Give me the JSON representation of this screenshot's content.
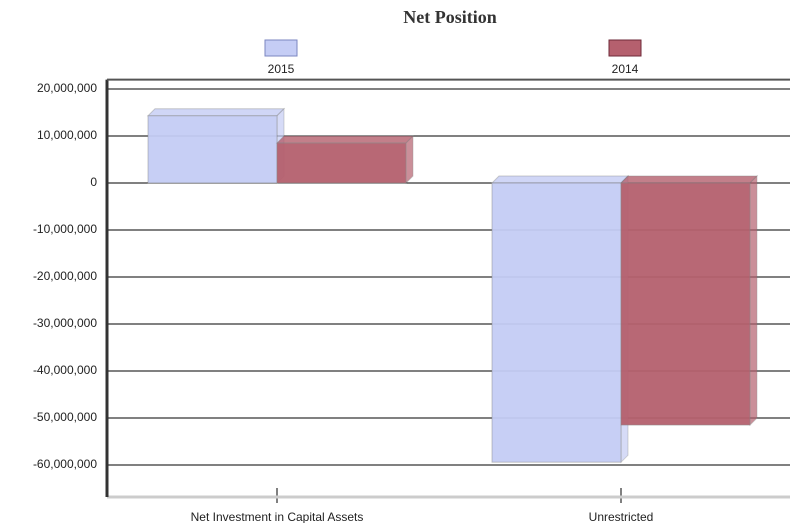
{
  "chart_data": {
    "type": "bar",
    "title": "Net Position",
    "categories": [
      "Net Investment in Capital Assets",
      "Unrestricted"
    ],
    "series": [
      {
        "name": "2015",
        "color": "#c5cdf5",
        "values": [
          14300000,
          -59400000
        ]
      },
      {
        "name": "2014",
        "color": "#b5606e",
        "values": [
          8500000,
          -51500000
        ]
      }
    ],
    "ylim": [
      -66000000,
      22000000
    ],
    "yticks": [
      {
        "value": -60000000,
        "label": "-60,000,000"
      },
      {
        "value": -50000000,
        "label": "-50,000,000"
      },
      {
        "value": -40000000,
        "label": "-40,000,000"
      },
      {
        "value": -30000000,
        "label": "-30,000,000"
      },
      {
        "value": -20000000,
        "label": "-20,000,000"
      },
      {
        "value": -10000000,
        "label": "-10,000,000"
      },
      0,
      {
        "value": 10000000,
        "label": "10,000,000"
      },
      {
        "value": 20000000,
        "label": "20,000,000"
      }
    ],
    "grid": true,
    "legend": "top"
  }
}
